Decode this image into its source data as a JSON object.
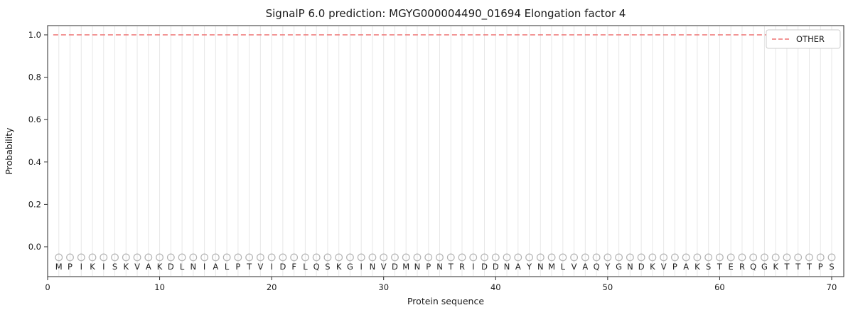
{
  "chart_data": {
    "type": "line",
    "title": "SignalP 6.0 prediction: MGYG000004490_01694 Elongation factor 4",
    "xlabel": "Protein sequence",
    "ylabel": "Probability",
    "xlim": [
      0,
      71
    ],
    "ylim": [
      -0.14,
      1.04
    ],
    "xticks": [
      0,
      10,
      20,
      30,
      40,
      50,
      60,
      70
    ],
    "yticks": [
      0.0,
      0.2,
      0.4,
      0.6,
      0.8,
      1.0
    ],
    "grid": "vertical-line-per-residue",
    "sequence": "MPIKISKVAKDLNIALPTVIDFLQSKGINVDMNPNTRIDDNAYNMLVAQYGNDKVPAKSTERQGKTTTPS",
    "sequence_length": 70,
    "series": [
      {
        "name": "OTHER",
        "type": "hline",
        "y": 1.0,
        "x_start": 0.5,
        "x_end": 70.6,
        "color": "#ee7272",
        "dashed": true
      }
    ],
    "residue_markers": {
      "shape": "open-circle",
      "y": -0.05,
      "color": "#b3b3b3"
    },
    "legend": {
      "position": "upper right",
      "entries": [
        {
          "label": "OTHER",
          "color": "#ee7272",
          "dashed": true
        }
      ]
    },
    "colors": {
      "grid": "#e7e7e7",
      "spine": "#2b2b2b",
      "text": "#1a1a1a",
      "marker": "#b3b3b3",
      "other_line": "#ee7272",
      "legend_border": "#cccccc"
    }
  }
}
